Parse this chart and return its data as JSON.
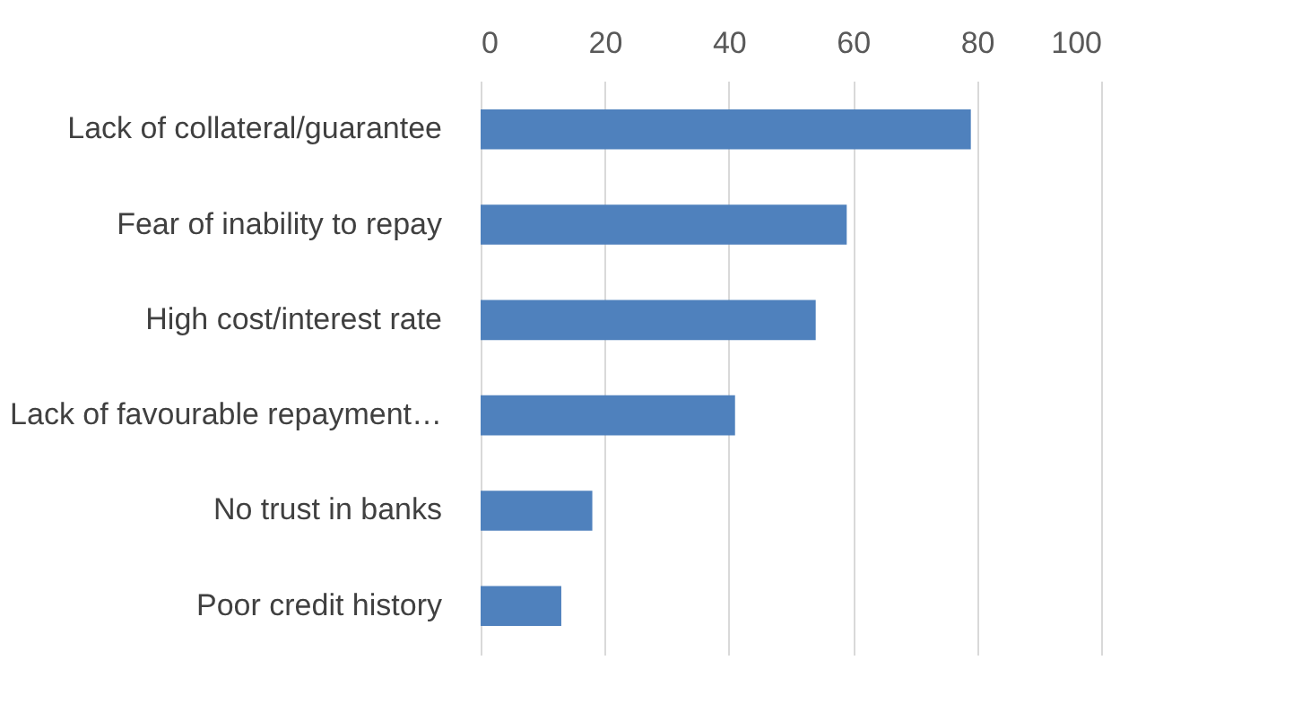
{
  "chart_data": {
    "type": "bar",
    "orientation": "horizontal",
    "categories": [
      "Lack of collateral/guarantee",
      "Fear of inability to repay",
      "High cost/interest rate",
      "Lack of favourable repayment…",
      "No trust in banks",
      "Poor credit history"
    ],
    "values": [
      79,
      59,
      54,
      41,
      18,
      13
    ],
    "color": "#4f81bd",
    "xlim": [
      0,
      100
    ],
    "xticks": [
      0,
      20,
      40,
      60,
      80,
      100
    ],
    "grid": "x"
  }
}
